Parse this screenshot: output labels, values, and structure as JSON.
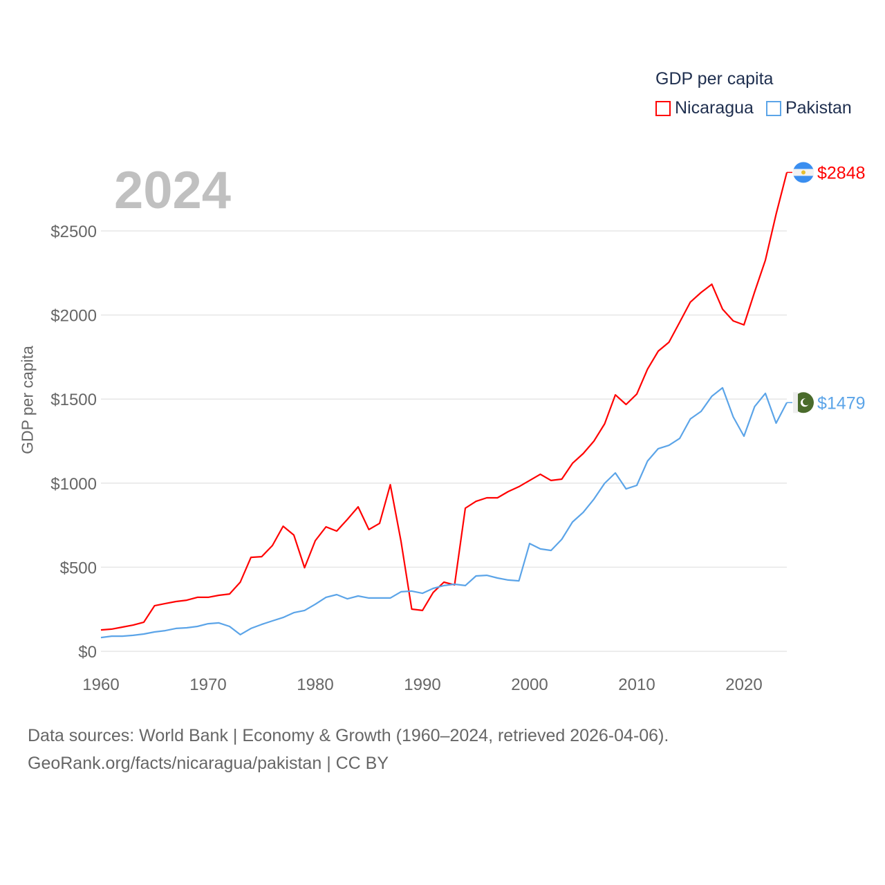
{
  "chart_data": {
    "type": "line",
    "title": "GDP per capita",
    "ylabel": "GDP per capita",
    "xlabel": "",
    "current_year": "2024",
    "xlim": [
      1960,
      2024
    ],
    "ylim": [
      0,
      2900
    ],
    "x_ticks": [
      1960,
      1970,
      1980,
      1990,
      2000,
      2010,
      2020
    ],
    "y_ticks": [
      0,
      500,
      1000,
      1500,
      2000,
      2500
    ],
    "y_tick_labels": [
      "$0",
      "$500",
      "$1000",
      "$1500",
      "$2000",
      "$2500"
    ],
    "grid": true,
    "legend_position": "top-right",
    "x": [
      1960,
      1961,
      1962,
      1963,
      1964,
      1965,
      1966,
      1967,
      1968,
      1969,
      1970,
      1971,
      1972,
      1973,
      1974,
      1975,
      1976,
      1977,
      1978,
      1979,
      1980,
      1981,
      1982,
      1983,
      1984,
      1985,
      1986,
      1987,
      1988,
      1989,
      1990,
      1991,
      1992,
      1993,
      1994,
      1995,
      1996,
      1997,
      1998,
      1999,
      2000,
      2001,
      2002,
      2003,
      2004,
      2005,
      2006,
      2007,
      2008,
      2009,
      2010,
      2011,
      2012,
      2013,
      2014,
      2015,
      2016,
      2017,
      2018,
      2019,
      2020,
      2021,
      2022,
      2023,
      2024
    ],
    "series": [
      {
        "name": "Nicaragua",
        "color": "#ff0000",
        "end_label": "$2848",
        "flag": "nicaragua-flag",
        "values": [
          127,
          132,
          144,
          156,
          173,
          271,
          284,
          296,
          304,
          321,
          321,
          333,
          341,
          411,
          559,
          563,
          629,
          744,
          691,
          497,
          658,
          740,
          715,
          785,
          859,
          724,
          761,
          991,
          654,
          251,
          243,
          350,
          411,
          395,
          851,
          892,
          913,
          913,
          950,
          979,
          1016,
          1053,
          1016,
          1024,
          1118,
          1176,
          1250,
          1353,
          1525,
          1468,
          1530,
          1678,
          1785,
          1838,
          1957,
          2077,
          2134,
          2183,
          2035,
          1965,
          1941,
          2138,
          2326,
          2600,
          2848
        ]
      },
      {
        "name": "Pakistan",
        "color": "#5ba4e8",
        "end_label": "$1479",
        "flag": "pakistan-flag",
        "values": [
          82,
          90,
          90,
          95,
          103,
          115,
          123,
          136,
          140,
          148,
          164,
          169,
          148,
          99,
          136,
          160,
          181,
          201,
          230,
          243,
          280,
          321,
          337,
          312,
          329,
          317,
          317,
          317,
          354,
          358,
          345,
          374,
          391,
          399,
          391,
          448,
          452,
          436,
          424,
          419,
          641,
          609,
          600,
          666,
          769,
          826,
          905,
          999,
          1061,
          966,
          987,
          1131,
          1205,
          1225,
          1266,
          1382,
          1427,
          1517,
          1567,
          1394,
          1279,
          1456,
          1534,
          1357,
          1479
        ]
      }
    ]
  },
  "footer": {
    "line1": "Data sources: World Bank | Economy & Growth (1960–2024, retrieved 2026-04-06).",
    "line2": "GeoRank.org/facts/nicaragua/pakistan | CC BY"
  }
}
